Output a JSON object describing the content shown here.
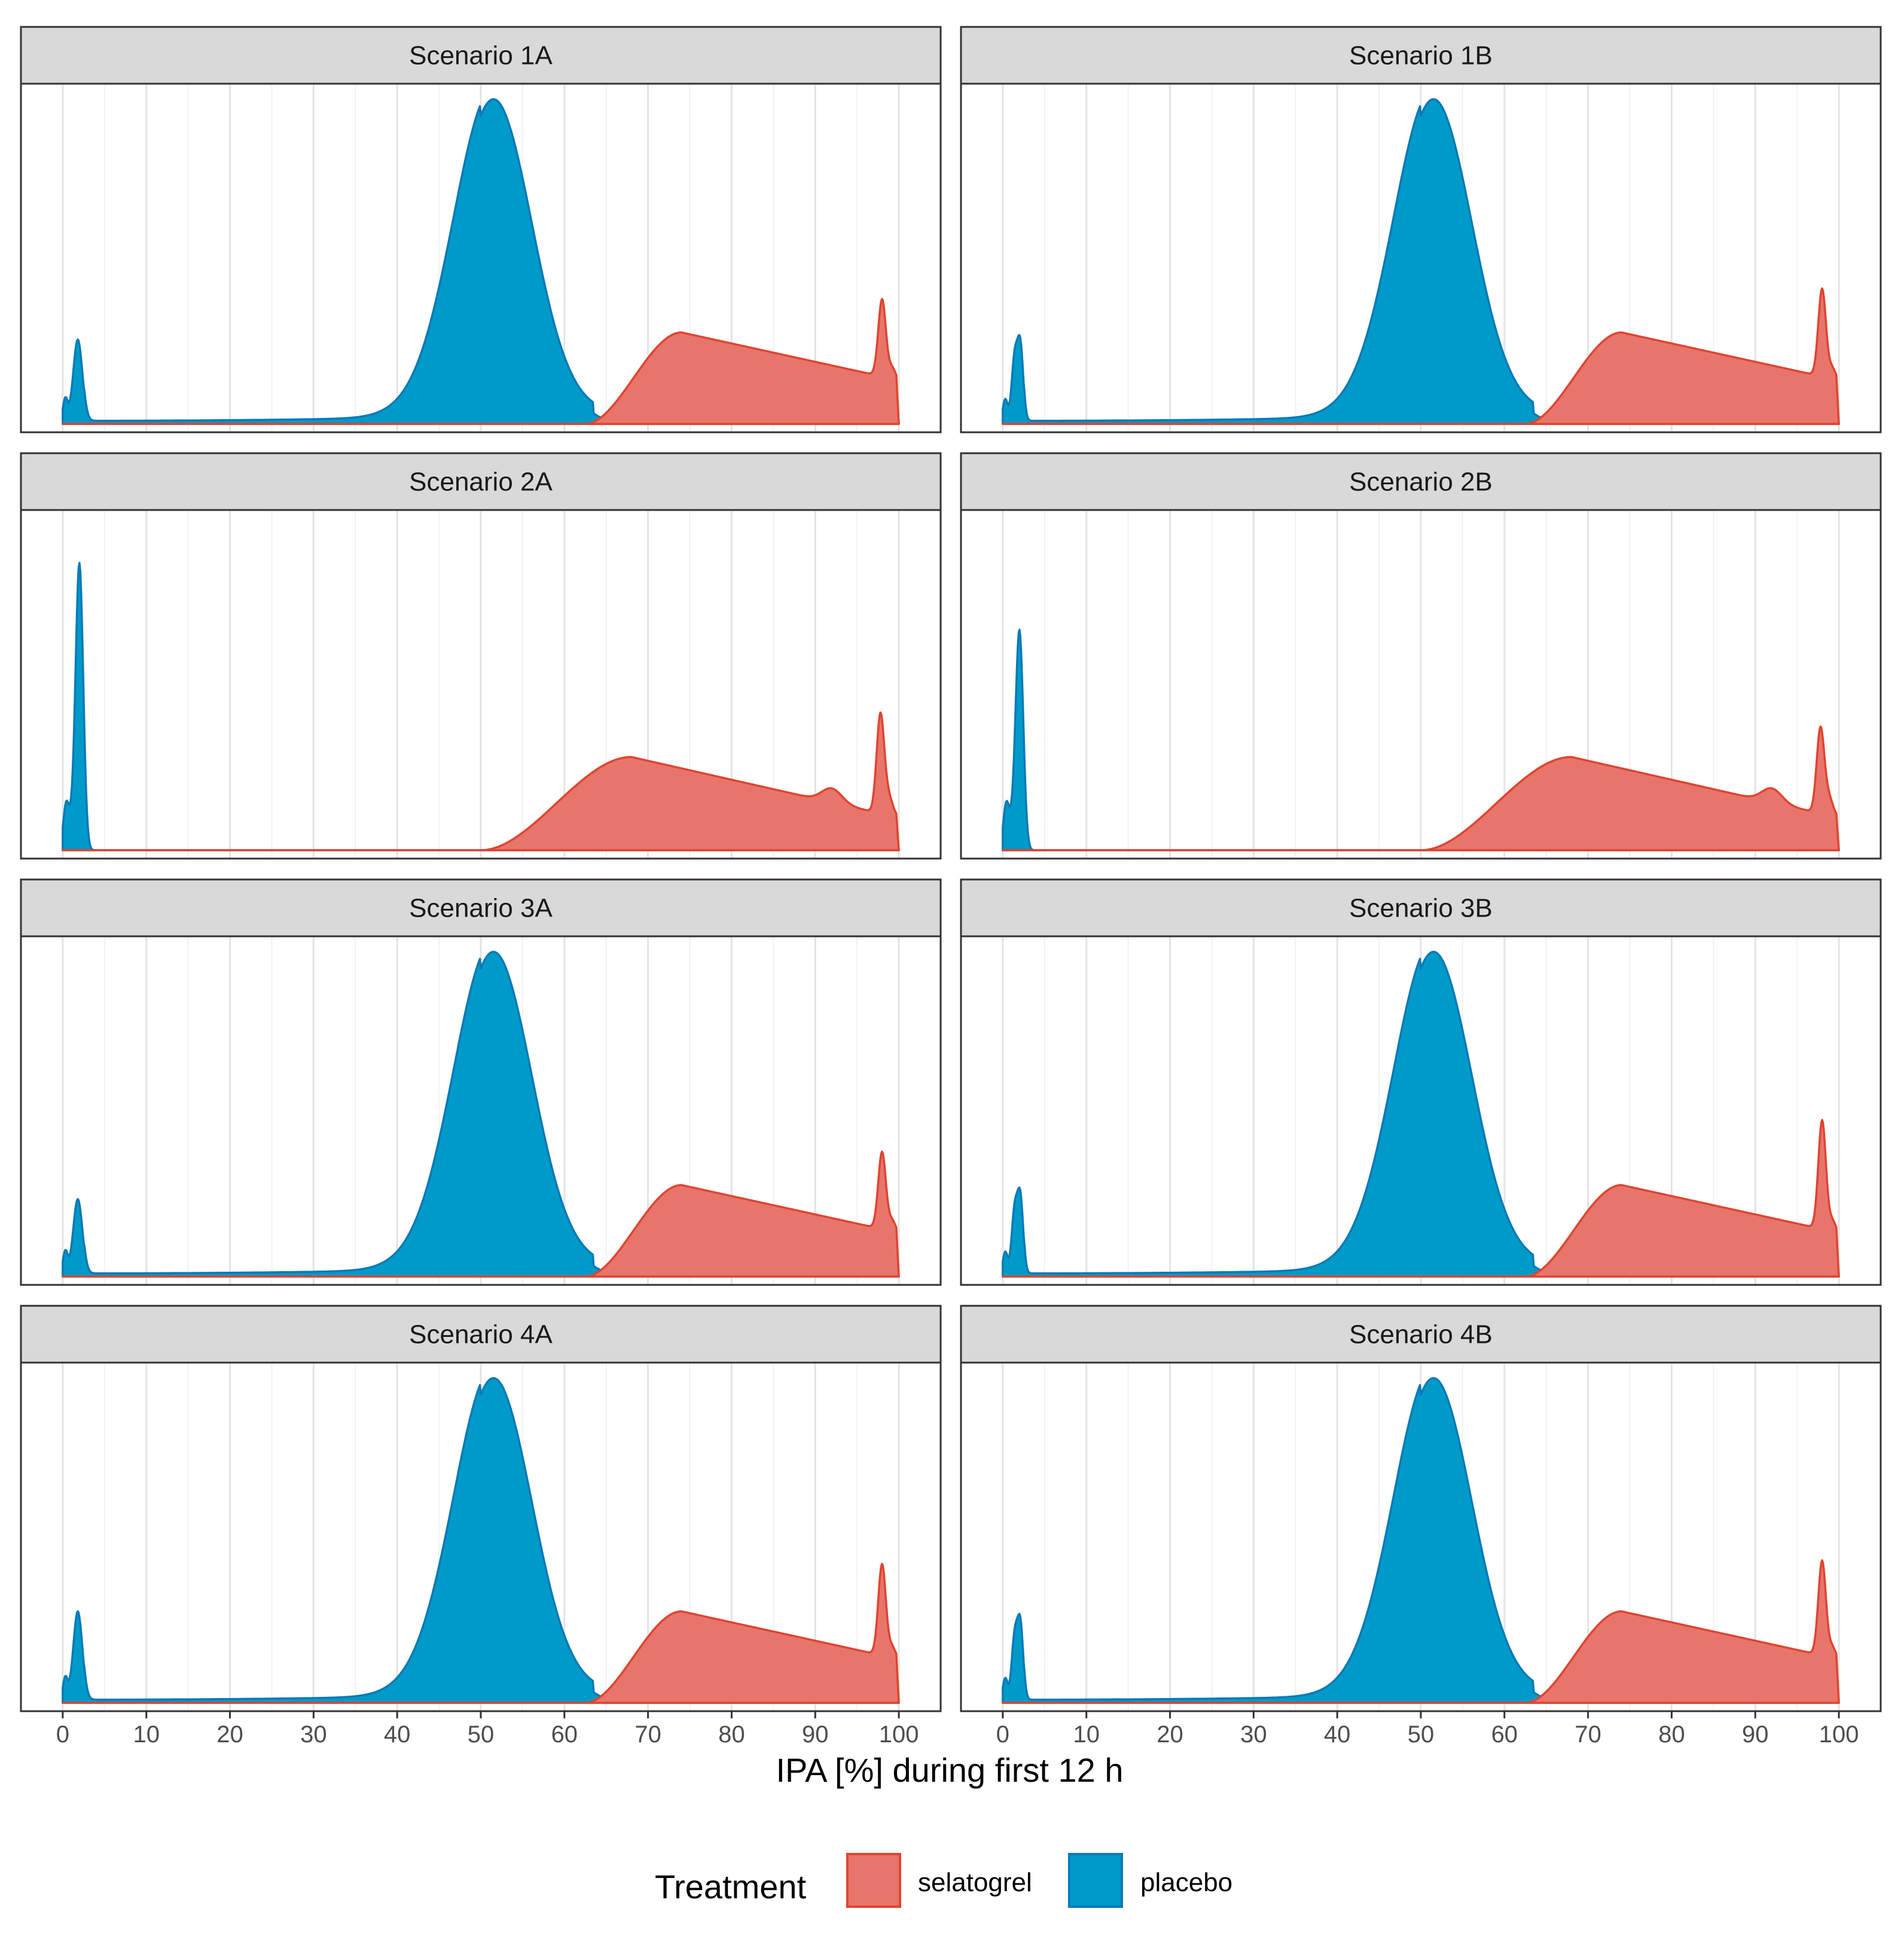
{
  "chart_data": {
    "type": "area",
    "subtype": "faceted density",
    "xlabel": "IPA [%] during first 12 h",
    "ylabel": "",
    "xlim": [
      -5,
      105
    ],
    "x_ticks": [
      0,
      10,
      20,
      30,
      40,
      50,
      60,
      70,
      80,
      90,
      100
    ],
    "grid": "vertical major and minor",
    "legend": {
      "title": "Treatment",
      "position": "bottom",
      "entries": [
        {
          "name": "selatogrel",
          "fill": "#E8756B",
          "stroke": "#E0442F"
        },
        {
          "name": "placebo",
          "fill": "#009AC9",
          "stroke": "#0A7AB8"
        }
      ]
    },
    "panels": [
      {
        "title": "Scenario 1A",
        "placebo": {
          "type": "A",
          "spike_peak": 0.24
        },
        "selatogrel": {
          "shape": "A",
          "end_spike": 0.22
        }
      },
      {
        "title": "Scenario 1B",
        "placebo": {
          "type": "B",
          "spike_peak": 0.22
        },
        "selatogrel": {
          "shape": "A",
          "end_spike": 0.25
        }
      },
      {
        "title": "Scenario 2A",
        "placebo": {
          "type": "spike",
          "spike_peak": 0.8
        },
        "selatogrel": {
          "shape": "B",
          "end_spike": 0.28
        }
      },
      {
        "title": "Scenario 2B",
        "placebo": {
          "type": "spike",
          "spike_peak": 0.61
        },
        "selatogrel": {
          "shape": "B",
          "end_spike": 0.24
        }
      },
      {
        "title": "Scenario 3A",
        "placebo": {
          "type": "A",
          "spike_peak": 0.22
        },
        "selatogrel": {
          "shape": "A",
          "end_spike": 0.22
        }
      },
      {
        "title": "Scenario 3B",
        "placebo": {
          "type": "B",
          "spike_peak": 0.22
        },
        "selatogrel": {
          "shape": "A",
          "end_spike": 0.31
        }
      },
      {
        "title": "Scenario 4A",
        "placebo": {
          "type": "A",
          "spike_peak": 0.26
        },
        "selatogrel": {
          "shape": "A",
          "end_spike": 0.26
        }
      },
      {
        "title": "Scenario 4B",
        "placebo": {
          "type": "B",
          "spike_peak": 0.22
        },
        "selatogrel": {
          "shape": "A",
          "end_spike": 0.27
        }
      }
    ]
  }
}
